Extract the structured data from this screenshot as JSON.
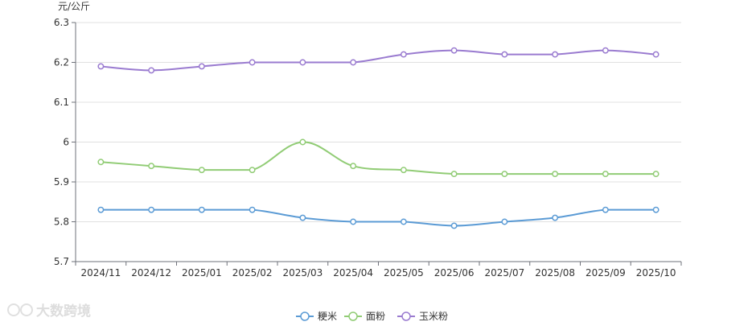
{
  "watermark": "大数跨境",
  "chart_data": {
    "type": "line",
    "ylabel": "元/公斤",
    "ylim": [
      5.7,
      6.3
    ],
    "yticks": [
      5.7,
      5.8,
      5.9,
      6,
      6.1,
      6.2,
      6.3
    ],
    "ytick_labels": [
      "5.7",
      "5.8",
      "5.9",
      "6",
      "6.1",
      "6.2",
      "6.3"
    ],
    "grid": true,
    "smooth": true,
    "legend_position": "bottom-center",
    "categories": [
      "2024/11",
      "2024/12",
      "2025/01",
      "2025/02",
      "2025/03",
      "2025/04",
      "2025/05",
      "2025/06",
      "2025/07",
      "2025/08",
      "2025/09",
      "2025/10"
    ],
    "series": [
      {
        "name": "粳米",
        "color": "#5b9bd5",
        "values": [
          5.83,
          5.83,
          5.83,
          5.83,
          5.81,
          5.8,
          5.8,
          5.79,
          5.8,
          5.81,
          5.83,
          5.83
        ]
      },
      {
        "name": "面粉",
        "color": "#91cc75",
        "values": [
          5.95,
          5.94,
          5.93,
          5.93,
          6.0,
          5.94,
          5.93,
          5.92,
          5.92,
          5.92,
          5.92,
          5.92
        ]
      },
      {
        "name": "玉米粉",
        "color": "#9a7bd0",
        "values": [
          6.19,
          6.18,
          6.19,
          6.2,
          6.2,
          6.2,
          6.22,
          6.23,
          6.22,
          6.22,
          6.23,
          6.22
        ]
      }
    ]
  }
}
